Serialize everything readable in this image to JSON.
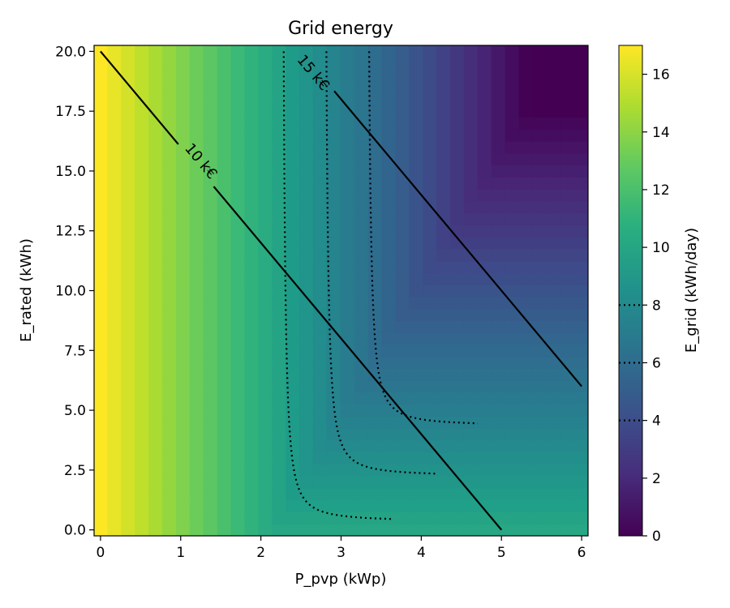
{
  "chart_data": {
    "type": "heatmap",
    "title": "Grid energy",
    "xlabel": "P_pvp (kWp)",
    "ylabel": "E_rated (kWh)",
    "xlim": [
      -0.08,
      6.08
    ],
    "ylim": [
      -0.25,
      20.25
    ],
    "x_ticks": [
      0,
      1,
      2,
      3,
      4,
      5,
      6
    ],
    "x_tick_labels": [
      "0",
      "1",
      "2",
      "3",
      "4",
      "5",
      "6"
    ],
    "y_ticks": [
      0,
      2.5,
      5,
      7.5,
      10,
      12.5,
      15,
      17.5,
      20
    ],
    "y_tick_labels": [
      "0.0",
      "2.5",
      "5.0",
      "7.5",
      "10.0",
      "12.5",
      "15.0",
      "17.5",
      "20.0"
    ],
    "grid": false,
    "colormap": "viridis",
    "colorbar": {
      "label": "E_grid (kWh/day)",
      "range": [
        0,
        17
      ],
      "ticks": [
        0,
        2,
        4,
        6,
        8,
        10,
        12,
        14,
        16
      ],
      "tick_labels": [
        "0",
        "2",
        "4",
        "6",
        "8",
        "10",
        "12",
        "14",
        "16"
      ],
      "contour_marks": [
        4,
        6,
        8
      ]
    },
    "heatmap": {
      "x_cells": 36,
      "y_cells": 41,
      "x_step": 0.171,
      "y_step": 0.5,
      "base_load_kwh_per_day": 17,
      "pv_yield_kwh_per_kwp": 3.2,
      "daytime_load_kwh": 6.85
    },
    "cost_lines": [
      {
        "label": "10 k€",
        "x": [
          0,
          5
        ],
        "y": [
          20,
          0
        ],
        "label_at": [
          1.25,
          15.4
        ]
      },
      {
        "label": "15 k€",
        "x": [
          2.5,
          6
        ],
        "y": [
          20,
          6
        ],
        "label_at": [
          2.65,
          19.1
        ]
      }
    ],
    "contours": [
      {
        "level": 8,
        "x_asymptote": 2.25,
        "y_asymptote": 0.35
      },
      {
        "level": 6,
        "x_asymptote": 2.78,
        "y_asymptote": 2.25
      },
      {
        "level": 4,
        "x_asymptote": 3.31,
        "y_asymptote": 4.35
      }
    ]
  }
}
